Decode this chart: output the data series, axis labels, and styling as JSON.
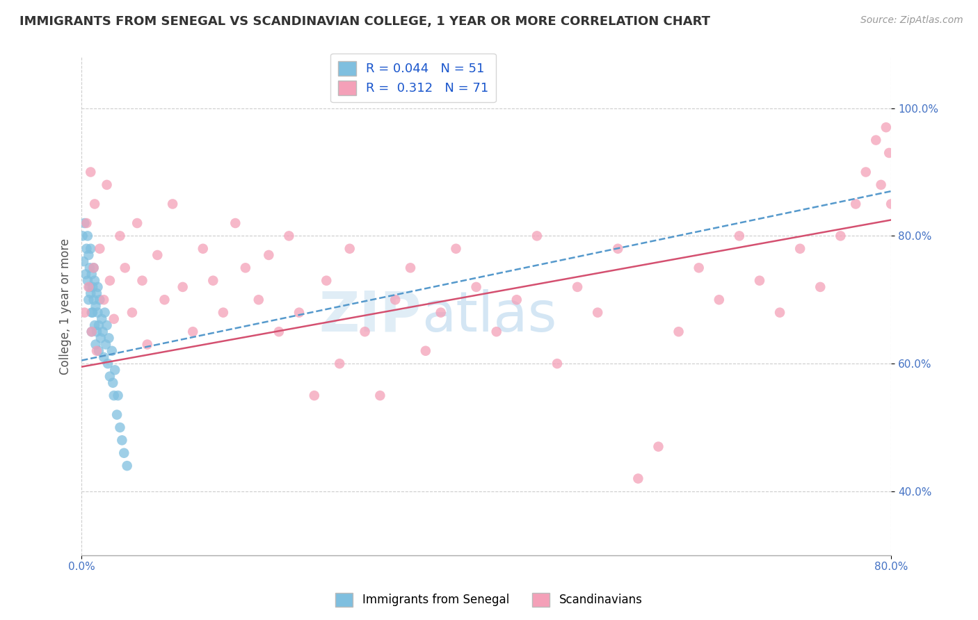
{
  "title": "IMMIGRANTS FROM SENEGAL VS SCANDINAVIAN COLLEGE, 1 YEAR OR MORE CORRELATION CHART",
  "source": "Source: ZipAtlas.com",
  "ylabel": "College, 1 year or more",
  "legend_labels": [
    "Immigrants from Senegal",
    "Scandinavians"
  ],
  "r_values": [
    0.044,
    0.312
  ],
  "n_values": [
    51,
    71
  ],
  "xmin": 0.0,
  "xmax": 0.8,
  "ymin": 0.3,
  "ymax": 1.08,
  "x_ticks": [
    0.0,
    0.8
  ],
  "x_tick_labels": [
    "0.0%",
    "80.0%"
  ],
  "y_ticks": [
    0.4,
    0.6,
    0.8,
    1.0
  ],
  "y_tick_labels": [
    "40.0%",
    "60.0%",
    "80.0%",
    "100.0%"
  ],
  "color_blue": "#7fbfdf",
  "color_pink": "#f4a0b8",
  "line_blue_color": "#5599cc",
  "line_pink_color": "#d45070",
  "watermark_zip": "ZIP",
  "watermark_atlas": "atlas",
  "blue_scatter_x": [
    0.001,
    0.002,
    0.003,
    0.004,
    0.005,
    0.006,
    0.006,
    0.007,
    0.007,
    0.008,
    0.008,
    0.009,
    0.009,
    0.01,
    0.01,
    0.01,
    0.011,
    0.011,
    0.012,
    0.012,
    0.013,
    0.013,
    0.014,
    0.014,
    0.015,
    0.015,
    0.016,
    0.016,
    0.017,
    0.017,
    0.018,
    0.019,
    0.02,
    0.021,
    0.022,
    0.023,
    0.024,
    0.025,
    0.026,
    0.027,
    0.028,
    0.03,
    0.031,
    0.032,
    0.033,
    0.035,
    0.036,
    0.038,
    0.04,
    0.042,
    0.045
  ],
  "blue_scatter_y": [
    0.8,
    0.76,
    0.82,
    0.74,
    0.78,
    0.73,
    0.8,
    0.7,
    0.77,
    0.75,
    0.72,
    0.71,
    0.78,
    0.68,
    0.74,
    0.65,
    0.72,
    0.68,
    0.75,
    0.7,
    0.66,
    0.73,
    0.63,
    0.69,
    0.71,
    0.65,
    0.68,
    0.72,
    0.62,
    0.66,
    0.7,
    0.64,
    0.67,
    0.65,
    0.61,
    0.68,
    0.63,
    0.66,
    0.6,
    0.64,
    0.58,
    0.62,
    0.57,
    0.55,
    0.59,
    0.52,
    0.55,
    0.5,
    0.48,
    0.46,
    0.44
  ],
  "pink_scatter_x": [
    0.003,
    0.005,
    0.007,
    0.009,
    0.01,
    0.012,
    0.013,
    0.015,
    0.018,
    0.022,
    0.025,
    0.028,
    0.032,
    0.038,
    0.043,
    0.05,
    0.055,
    0.06,
    0.065,
    0.075,
    0.082,
    0.09,
    0.1,
    0.11,
    0.12,
    0.13,
    0.14,
    0.152,
    0.162,
    0.175,
    0.185,
    0.195,
    0.205,
    0.215,
    0.23,
    0.242,
    0.255,
    0.265,
    0.28,
    0.295,
    0.31,
    0.325,
    0.34,
    0.355,
    0.37,
    0.39,
    0.41,
    0.43,
    0.45,
    0.47,
    0.49,
    0.51,
    0.53,
    0.55,
    0.57,
    0.59,
    0.61,
    0.63,
    0.65,
    0.67,
    0.69,
    0.71,
    0.73,
    0.75,
    0.765,
    0.775,
    0.785,
    0.79,
    0.795,
    0.798,
    0.8
  ],
  "pink_scatter_y": [
    0.68,
    0.82,
    0.72,
    0.9,
    0.65,
    0.75,
    0.85,
    0.62,
    0.78,
    0.7,
    0.88,
    0.73,
    0.67,
    0.8,
    0.75,
    0.68,
    0.82,
    0.73,
    0.63,
    0.77,
    0.7,
    0.85,
    0.72,
    0.65,
    0.78,
    0.73,
    0.68,
    0.82,
    0.75,
    0.7,
    0.77,
    0.65,
    0.8,
    0.68,
    0.55,
    0.73,
    0.6,
    0.78,
    0.65,
    0.55,
    0.7,
    0.75,
    0.62,
    0.68,
    0.78,
    0.72,
    0.65,
    0.7,
    0.8,
    0.6,
    0.72,
    0.68,
    0.78,
    0.42,
    0.47,
    0.65,
    0.75,
    0.7,
    0.8,
    0.73,
    0.68,
    0.78,
    0.72,
    0.8,
    0.85,
    0.9,
    0.95,
    0.88,
    0.97,
    0.93,
    0.85
  ]
}
